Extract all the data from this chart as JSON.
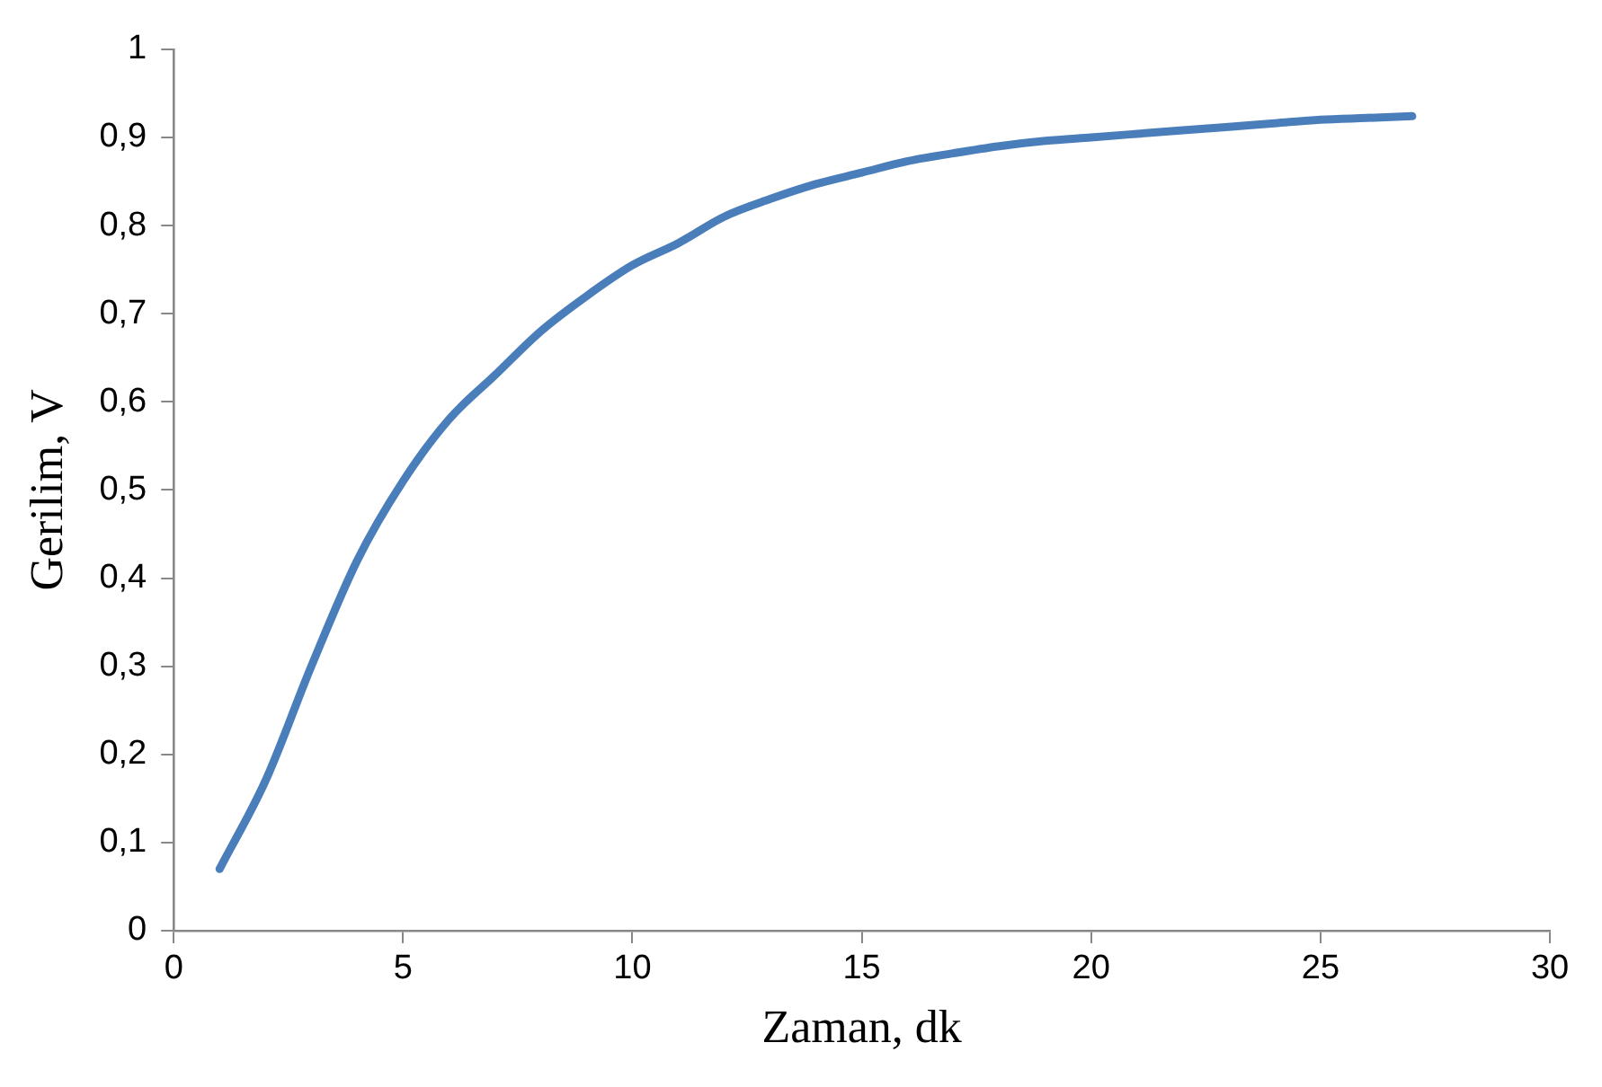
{
  "chart_data": {
    "type": "line",
    "xlabel": "Zaman, dk",
    "ylabel": "Gerilim, V",
    "grid": false,
    "legend": false,
    "marker": "none",
    "line_style": "solid",
    "x": [
      1,
      2,
      3,
      4,
      5,
      6,
      7,
      8,
      9,
      10,
      11,
      12,
      13,
      14,
      15,
      16,
      17,
      18,
      19,
      20,
      21,
      22,
      23,
      24,
      25,
      26,
      27
    ],
    "series": [
      {
        "color": "#4a7ebb",
        "values": [
          0.07,
          0.17,
          0.3,
          0.42,
          0.51,
          0.58,
          0.63,
          0.68,
          0.72,
          0.755,
          0.78,
          0.81,
          0.83,
          0.847,
          0.86,
          0.873,
          0.882,
          0.89,
          0.896,
          0.9,
          0.904,
          0.908,
          0.912,
          0.916,
          0.92,
          0.922,
          0.924
        ]
      }
    ],
    "xlim": [
      0,
      30
    ],
    "xticks": [
      0,
      5,
      10,
      15,
      20,
      25,
      30
    ],
    "ylim": [
      0,
      1
    ],
    "yticks": [
      0,
      {
        "value": 0.1,
        "label": "0,1"
      },
      {
        "value": 0.2,
        "label": "0,2"
      },
      {
        "value": 0.3,
        "label": "0,3"
      },
      {
        "value": 0.4,
        "label": "0,4"
      },
      {
        "value": 0.5,
        "label": "0,5"
      },
      {
        "value": 0.6,
        "label": "0,6"
      },
      {
        "value": 0.7,
        "label": "0,7"
      },
      {
        "value": 0.8,
        "label": "0,8"
      },
      {
        "value": 0.9,
        "label": "0,9"
      },
      1
    ]
  }
}
